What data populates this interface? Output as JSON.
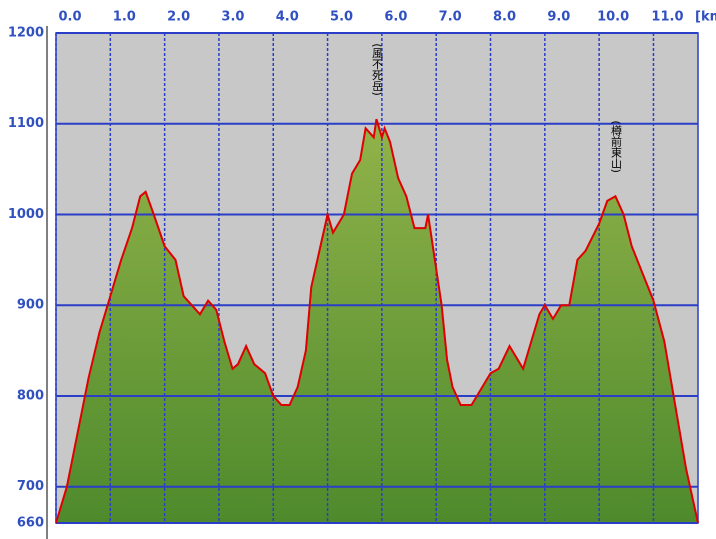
{
  "chart_data": {
    "type": "area",
    "xlabel": "[km]",
    "x": [
      0.0,
      0.2,
      0.4,
      0.6,
      0.8,
      1.0,
      1.2,
      1.4,
      1.55,
      1.65,
      1.8,
      2.0,
      2.2,
      2.35,
      2.5,
      2.65,
      2.8,
      2.95,
      3.1,
      3.25,
      3.35,
      3.5,
      3.65,
      3.85,
      4.0,
      4.15,
      4.3,
      4.45,
      4.6,
      4.7,
      4.85,
      5.0,
      5.1,
      5.3,
      5.45,
      5.6,
      5.7,
      5.85,
      5.9,
      6.0,
      6.05,
      6.15,
      6.3,
      6.45,
      6.6,
      6.8,
      6.85,
      6.95,
      7.1,
      7.2,
      7.3,
      7.45,
      7.65,
      7.85,
      8.0,
      8.15,
      8.35,
      8.5,
      8.6,
      8.75,
      8.9,
      9.0,
      9.15,
      9.3,
      9.45,
      9.6,
      9.75,
      10.0,
      10.15,
      10.3,
      10.45,
      10.6,
      10.8,
      11.0,
      11.2,
      11.4,
      11.6,
      11.82
    ],
    "values": [
      660,
      700,
      760,
      820,
      870,
      910,
      950,
      985,
      1020,
      1025,
      1000,
      965,
      950,
      910,
      900,
      890,
      905,
      895,
      860,
      830,
      835,
      855,
      835,
      825,
      800,
      790,
      790,
      810,
      850,
      920,
      960,
      1000,
      980,
      1000,
      1045,
      1060,
      1095,
      1085,
      1105,
      1085,
      1095,
      1080,
      1040,
      1020,
      985,
      985,
      1000,
      960,
      900,
      840,
      810,
      790,
      790,
      810,
      825,
      830,
      855,
      840,
      830,
      860,
      890,
      900,
      885,
      900,
      900,
      950,
      960,
      990,
      1015,
      1020,
      1000,
      965,
      935,
      905,
      860,
      790,
      720,
      660
    ],
    "color": "#e00000",
    "fill_colors": [
      "#92b34a",
      "#4e8a2c"
    ],
    "xlim": [
      0,
      11.82
    ],
    "ylim": [
      660,
      1200
    ],
    "xticks": [
      {
        "value": 0,
        "label": "0.0"
      },
      {
        "value": 1,
        "label": "1.0"
      },
      {
        "value": 2,
        "label": "2.0"
      },
      {
        "value": 3,
        "label": "3.0"
      },
      {
        "value": 4,
        "label": "4.0"
      },
      {
        "value": 5,
        "label": "5.0"
      },
      {
        "value": 6,
        "label": "6.0"
      },
      {
        "value": 7,
        "label": "7.0"
      },
      {
        "value": 8,
        "label": "8.0"
      },
      {
        "value": 9,
        "label": "9.0"
      },
      {
        "value": 10,
        "label": "10.0"
      },
      {
        "value": 11,
        "label": "11.0"
      }
    ],
    "yticks": [
      660,
      700,
      800,
      900,
      1000,
      1100,
      1200
    ],
    "grid": true,
    "annotations": [
      {
        "text": "(風不死岳)",
        "x": 5.9
      },
      {
        "text": "(樽前東山)",
        "x": 10.3
      }
    ]
  }
}
